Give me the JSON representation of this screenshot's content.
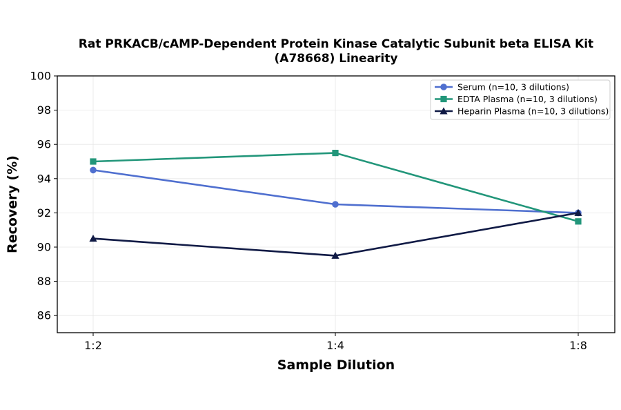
{
  "chart_data": {
    "type": "line",
    "title": "Rat PRKACB/cAMP-Dependent Protein Kinase Catalytic Subunit beta ELISA Kit",
    "subtitle": "(A78668) Linearity",
    "xlabel": "Sample Dilution",
    "ylabel": "Recovery (%)",
    "categories": [
      "1:2",
      "1:4",
      "1:8"
    ],
    "ylim": [
      85,
      100
    ],
    "yticks": [
      86,
      88,
      90,
      92,
      94,
      96,
      98,
      100
    ],
    "grid": true,
    "legend_position": "top-right",
    "series": [
      {
        "name": "Serum (n=10, 3 dilutions)",
        "values": [
          94.5,
          92.5,
          92.0
        ],
        "color": "#4f6fcf",
        "marker": "circle"
      },
      {
        "name": "EDTA Plasma (n=10, 3 dilutions)",
        "values": [
          95.0,
          95.5,
          91.5
        ],
        "color": "#22967a",
        "marker": "square"
      },
      {
        "name": "Heparin Plasma (n=10, 3 dilutions)",
        "values": [
          90.5,
          89.5,
          92.0
        ],
        "color": "#101a45",
        "marker": "triangle"
      }
    ]
  }
}
